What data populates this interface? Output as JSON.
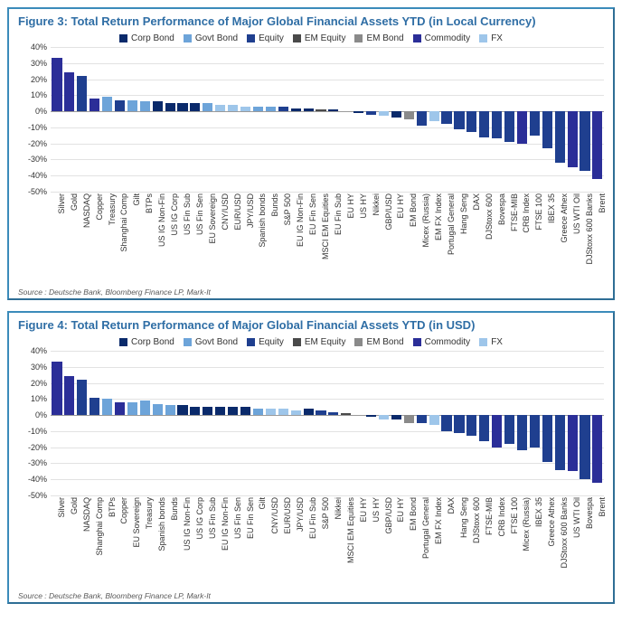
{
  "categories": {
    "corp_bond": {
      "label": "Corp Bond",
      "color": "#0a2a6b"
    },
    "govt_bond": {
      "label": "Govt Bond",
      "color": "#6da4d9"
    },
    "equity": {
      "label": "Equity",
      "color": "#1f3f8f"
    },
    "em_equity": {
      "label": "EM Equity",
      "color": "#4a4a4a"
    },
    "em_bond": {
      "label": "EM Bond",
      "color": "#8a8a8a"
    },
    "commodity": {
      "label": "Commodity",
      "color": "#2b2e98"
    },
    "fx": {
      "label": "FX",
      "color": "#9ec6ea"
    }
  },
  "legend_order": [
    "corp_bond",
    "govt_bond",
    "equity",
    "em_equity",
    "em_bond",
    "commodity",
    "fx"
  ],
  "axis": {
    "ymin": -50,
    "ymax": 40,
    "ytick_step": 10,
    "grid_color": "#e2e2e2",
    "zero_color": "#9a9a9a",
    "label_fontsize": 9
  },
  "figures": [
    {
      "title": "Figure 3: Total Return Performance of Major Global Financial Assets YTD (in Local Currency)",
      "source": "Source : Deutsche Bank, Bloomberg Finance LP, Mark-It",
      "bars": [
        {
          "label": "Silver",
          "value": 33,
          "cat": "commodity"
        },
        {
          "label": "Gold",
          "value": 24,
          "cat": "commodity"
        },
        {
          "label": "NASDAQ",
          "value": 22,
          "cat": "equity"
        },
        {
          "label": "Copper",
          "value": 8,
          "cat": "commodity"
        },
        {
          "label": "Treasury",
          "value": 9,
          "cat": "govt_bond"
        },
        {
          "label": "Shanghai Comp",
          "value": 7,
          "cat": "equity"
        },
        {
          "label": "Gilt",
          "value": 7,
          "cat": "govt_bond"
        },
        {
          "label": "BTPs",
          "value": 6,
          "cat": "govt_bond"
        },
        {
          "label": "US IG Non-Fin",
          "value": 6,
          "cat": "corp_bond"
        },
        {
          "label": "US IG Corp",
          "value": 5,
          "cat": "corp_bond"
        },
        {
          "label": "US Fin Sub",
          "value": 5,
          "cat": "corp_bond"
        },
        {
          "label": "US Fin Sen",
          "value": 5,
          "cat": "corp_bond"
        },
        {
          "label": "EU Sovereign",
          "value": 5,
          "cat": "govt_bond"
        },
        {
          "label": "CNY/USD",
          "value": 4,
          "cat": "fx"
        },
        {
          "label": "EUR/USD",
          "value": 4,
          "cat": "fx"
        },
        {
          "label": "JPY/USD",
          "value": 3,
          "cat": "fx"
        },
        {
          "label": "Spanish bonds",
          "value": 3,
          "cat": "govt_bond"
        },
        {
          "label": "Bunds",
          "value": 3,
          "cat": "govt_bond"
        },
        {
          "label": "S&P 500",
          "value": 3,
          "cat": "equity"
        },
        {
          "label": "EU IG Non-Fin",
          "value": 2,
          "cat": "corp_bond"
        },
        {
          "label": "EU Fin Sen",
          "value": 2,
          "cat": "corp_bond"
        },
        {
          "label": "MSCI EM Equities",
          "value": 1,
          "cat": "em_equity"
        },
        {
          "label": "EU Fin Sub",
          "value": 1,
          "cat": "corp_bond"
        },
        {
          "label": "EU HY",
          "value": 0,
          "cat": "corp_bond"
        },
        {
          "label": "US HY",
          "value": -1,
          "cat": "corp_bond"
        },
        {
          "label": "Nikkei",
          "value": -2,
          "cat": "equity"
        },
        {
          "label": "GBP/USD",
          "value": -3,
          "cat": "fx"
        },
        {
          "label": "EU HY",
          "value": -4,
          "cat": "corp_bond"
        },
        {
          "label": "EM Bond",
          "value": -5,
          "cat": "em_bond"
        },
        {
          "label": "Micex (Russia)",
          "value": -9,
          "cat": "equity"
        },
        {
          "label": "EM FX Index",
          "value": -6,
          "cat": "fx"
        },
        {
          "label": "Portugal General",
          "value": -8,
          "cat": "equity"
        },
        {
          "label": "Hang Seng",
          "value": -11,
          "cat": "equity"
        },
        {
          "label": "DAX",
          "value": -13,
          "cat": "equity"
        },
        {
          "label": "DJStoxx 600",
          "value": -16,
          "cat": "equity"
        },
        {
          "label": "Bovespa",
          "value": -17,
          "cat": "equity"
        },
        {
          "label": "FTSE-MIB",
          "value": -19,
          "cat": "equity"
        },
        {
          "label": "CRB Index",
          "value": -20,
          "cat": "commodity"
        },
        {
          "label": "FTSE 100",
          "value": -15,
          "cat": "equity"
        },
        {
          "label": "IBEX 35",
          "value": -23,
          "cat": "equity"
        },
        {
          "label": "Greece Athex",
          "value": -32,
          "cat": "equity"
        },
        {
          "label": "US WTI Oil",
          "value": -35,
          "cat": "commodity"
        },
        {
          "label": "DJStoxx 600 Banks",
          "value": -37,
          "cat": "equity"
        },
        {
          "label": "Brent",
          "value": -42,
          "cat": "commodity"
        }
      ]
    },
    {
      "title": "Figure 4: Total Return Performance of Major Global Financial Assets YTD (in USD)",
      "source": "Source : Deutsche Bank, Bloomberg Finance LP, Mark-It",
      "bars": [
        {
          "label": "Silver",
          "value": 33,
          "cat": "commodity"
        },
        {
          "label": "Gold",
          "value": 24,
          "cat": "commodity"
        },
        {
          "label": "NASDAQ",
          "value": 22,
          "cat": "equity"
        },
        {
          "label": "Shanghai Comp",
          "value": 11,
          "cat": "equity"
        },
        {
          "label": "BTPs",
          "value": 10,
          "cat": "govt_bond"
        },
        {
          "label": "Copper",
          "value": 8,
          "cat": "commodity"
        },
        {
          "label": "EU Sovereign",
          "value": 8,
          "cat": "govt_bond"
        },
        {
          "label": "Treasury",
          "value": 9,
          "cat": "govt_bond"
        },
        {
          "label": "Spanish bonds",
          "value": 7,
          "cat": "govt_bond"
        },
        {
          "label": "Bunds",
          "value": 6,
          "cat": "govt_bond"
        },
        {
          "label": "US IG Non-Fin",
          "value": 6,
          "cat": "corp_bond"
        },
        {
          "label": "US IG Corp",
          "value": 5,
          "cat": "corp_bond"
        },
        {
          "label": "US Fin Sub",
          "value": 5,
          "cat": "corp_bond"
        },
        {
          "label": "EU IG Non-Fin",
          "value": 5,
          "cat": "corp_bond"
        },
        {
          "label": "US Fin Sen",
          "value": 5,
          "cat": "corp_bond"
        },
        {
          "label": "EU Fin Sen",
          "value": 5,
          "cat": "corp_bond"
        },
        {
          "label": "Gilt",
          "value": 4,
          "cat": "govt_bond"
        },
        {
          "label": "CNY/USD",
          "value": 4,
          "cat": "fx"
        },
        {
          "label": "EUR/USD",
          "value": 4,
          "cat": "fx"
        },
        {
          "label": "JPY/USD",
          "value": 3,
          "cat": "fx"
        },
        {
          "label": "EU Fin Sub",
          "value": 4,
          "cat": "corp_bond"
        },
        {
          "label": "S&P 500",
          "value": 3,
          "cat": "equity"
        },
        {
          "label": "Nikkei",
          "value": 2,
          "cat": "equity"
        },
        {
          "label": "MSCI EM Equities",
          "value": 1,
          "cat": "em_equity"
        },
        {
          "label": "EU HY",
          "value": 0,
          "cat": "corp_bond"
        },
        {
          "label": "US HY",
          "value": -1,
          "cat": "corp_bond"
        },
        {
          "label": "GBP/USD",
          "value": -3,
          "cat": "fx"
        },
        {
          "label": "EU HY",
          "value": -3,
          "cat": "corp_bond"
        },
        {
          "label": "EM Bond",
          "value": -5,
          "cat": "em_bond"
        },
        {
          "label": "Portugal General",
          "value": -5,
          "cat": "equity"
        },
        {
          "label": "EM FX Index",
          "value": -6,
          "cat": "fx"
        },
        {
          "label": "DAX",
          "value": -10,
          "cat": "equity"
        },
        {
          "label": "Hang Seng",
          "value": -11,
          "cat": "equity"
        },
        {
          "label": "DJStoxx 600",
          "value": -13,
          "cat": "equity"
        },
        {
          "label": "FTSE-MIB",
          "value": -16,
          "cat": "equity"
        },
        {
          "label": "CRB Index",
          "value": -20,
          "cat": "commodity"
        },
        {
          "label": "FTSE 100",
          "value": -18,
          "cat": "equity"
        },
        {
          "label": "Micex (Russia)",
          "value": -22,
          "cat": "equity"
        },
        {
          "label": "IBEX 35",
          "value": -20,
          "cat": "equity"
        },
        {
          "label": "Greece Athex",
          "value": -29,
          "cat": "equity"
        },
        {
          "label": "DJStoxx 600 Banks",
          "value": -34,
          "cat": "equity"
        },
        {
          "label": "US WTI Oil",
          "value": -35,
          "cat": "commodity"
        },
        {
          "label": "Bovespa",
          "value": -40,
          "cat": "equity"
        },
        {
          "label": "Brent",
          "value": -42,
          "cat": "commodity"
        }
      ]
    }
  ]
}
